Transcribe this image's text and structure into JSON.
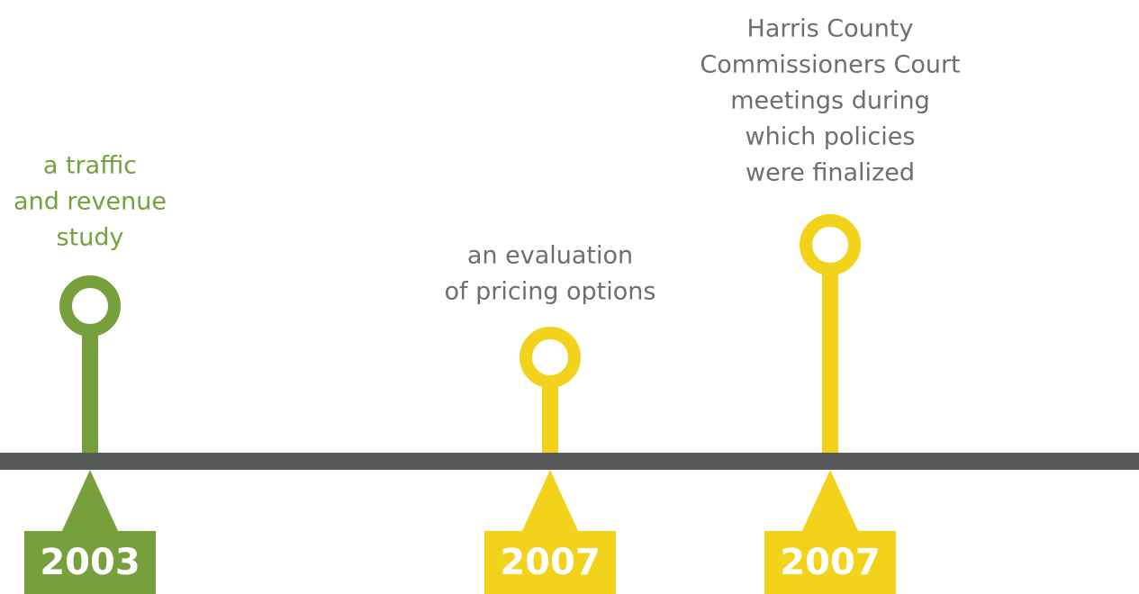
{
  "events": [
    {
      "lines": [
        "a traffic",
        "and revenue",
        "study"
      ],
      "year": "2003",
      "color": "#77a03c",
      "label_color": "#77a03c"
    },
    {
      "lines": [
        "an evaluation",
        "of pricing options"
      ],
      "year": "2007",
      "color": "#f2d21a",
      "label_color": "#6d6e71"
    },
    {
      "lines": [
        "Harris County",
        "Commissioners Court",
        "meetings during",
        "which policies",
        "were finalized"
      ],
      "year": "2007",
      "color": "#f2d21a",
      "label_color": "#6d6e71"
    }
  ]
}
